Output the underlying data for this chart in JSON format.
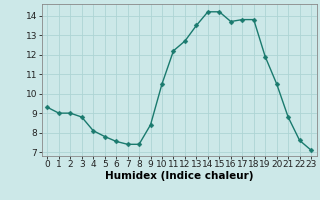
{
  "x": [
    0,
    1,
    2,
    3,
    4,
    5,
    6,
    7,
    8,
    9,
    10,
    11,
    12,
    13,
    14,
    15,
    16,
    17,
    18,
    19,
    20,
    21,
    22,
    23
  ],
  "y": [
    9.3,
    9.0,
    9.0,
    8.8,
    8.1,
    7.8,
    7.55,
    7.4,
    7.4,
    8.4,
    10.5,
    12.2,
    12.7,
    13.5,
    14.2,
    14.2,
    13.7,
    13.8,
    13.8,
    11.9,
    10.5,
    8.8,
    7.6,
    7.1
  ],
  "line_color": "#1a7a6e",
  "marker_color": "#1a7a6e",
  "bg_color": "#cce8e8",
  "grid_color": "#aed4d4",
  "xlabel": "Humidex (Indice chaleur)",
  "xlim": [
    -0.5,
    23.5
  ],
  "ylim": [
    6.8,
    14.6
  ],
  "yticks": [
    7,
    8,
    9,
    10,
    11,
    12,
    13,
    14
  ],
  "xticks": [
    0,
    1,
    2,
    3,
    4,
    5,
    6,
    7,
    8,
    9,
    10,
    11,
    12,
    13,
    14,
    15,
    16,
    17,
    18,
    19,
    20,
    21,
    22,
    23
  ],
  "xtick_labels": [
    "0",
    "1",
    "2",
    "3",
    "4",
    "5",
    "6",
    "7",
    "8",
    "9",
    "10",
    "11",
    "12",
    "13",
    "14",
    "15",
    "16",
    "17",
    "18",
    "19",
    "20",
    "21",
    "22",
    "23"
  ],
  "xlabel_fontsize": 7.5,
  "tick_fontsize": 6.5,
  "line_width": 1.0,
  "marker_size": 2.5
}
